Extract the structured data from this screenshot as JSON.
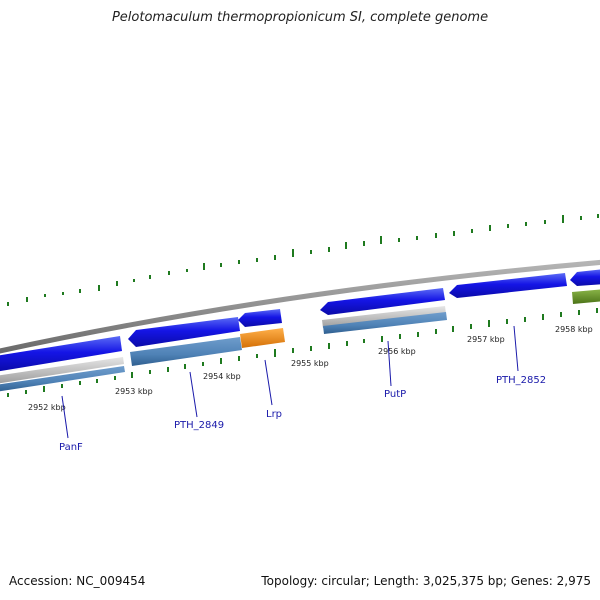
{
  "title": "Pelotomaculum thermopropionicum SI, complete genome",
  "footer": {
    "accession": "Accession: NC_009454",
    "topology": "Topology: circular; Length: 3,025,375 bp; Genes: 2,975"
  },
  "kbp_labels": [
    "2952 kbp",
    "2953 kbp",
    "2954 kbp",
    "2955 kbp",
    "2956 kbp",
    "2957 kbp",
    "2958 kbp"
  ],
  "gene_labels": [
    "PanF",
    "PTH_2849",
    "Lrp",
    "PutP",
    "PTH_2852"
  ],
  "colors": {
    "backbone": "#8c8c8c",
    "cds": "#1515e6",
    "cds_light": "#5c72f0",
    "blast": "#5b8cbe",
    "orange": "#f08c14",
    "olive": "#6f9a2a",
    "gray_band": "#bdbdbd",
    "tick_green": "#1f7a1f",
    "label_blue": "#1a1aaa"
  }
}
